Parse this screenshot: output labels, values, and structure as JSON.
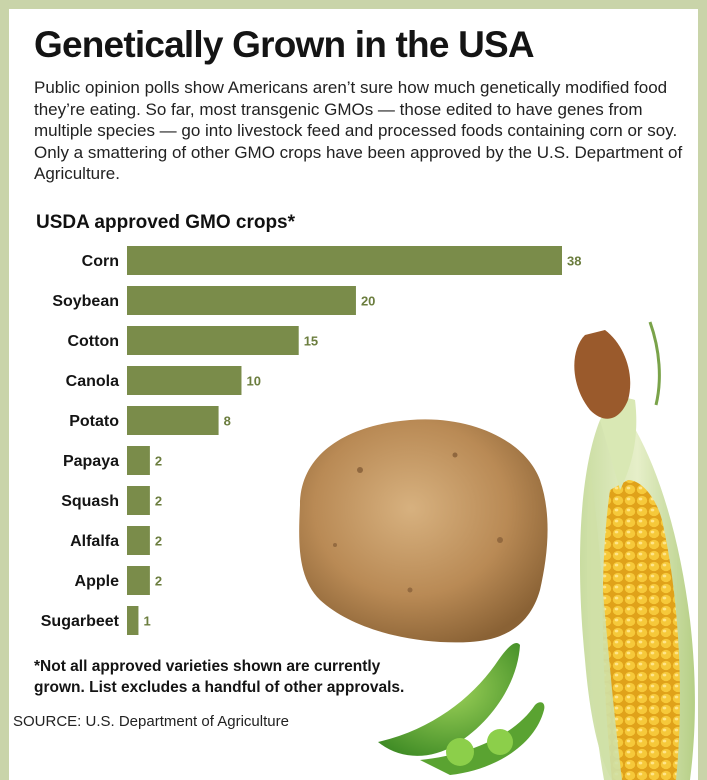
{
  "title": "Genetically Grown in the USA",
  "intro": "Public opinion polls show Americans aren’t sure how much genetically modified food they’re eating. So far, most transgenic GMOs — those edited to have genes from multiple species — go into livestock feed and processed foods containing corn or soy. Only a smattering of other GMO crops have been approved by the U.S. Department of Agriculture.",
  "footnote": "*Not all approved varieties shown are currently grown. List excludes a handful of other approvals.",
  "source": "SOURCE: U.S. Department of Agriculture",
  "colors": {
    "bar": "#7a8c4a",
    "value_label": "#6b7d3e",
    "frame": "#c9d4a9"
  },
  "illustrations": [
    "potato",
    "ear-of-corn",
    "pea-pods"
  ],
  "chart_data": {
    "type": "bar",
    "orientation": "horizontal",
    "title": "USDA approved GMO crops*",
    "categories": [
      "Corn",
      "Soybean",
      "Cotton",
      "Canola",
      "Potato",
      "Papaya",
      "Squash",
      "Alfalfa",
      "Apple",
      "Sugarbeet"
    ],
    "values": [
      38,
      20,
      15,
      10,
      8,
      2,
      2,
      2,
      2,
      1
    ],
    "data_labels": [
      "38",
      "20",
      "15",
      "10",
      "8",
      "2",
      "2",
      "2",
      "2",
      "1"
    ],
    "xlim": [
      0,
      38
    ],
    "grid": false,
    "legend": "none"
  }
}
